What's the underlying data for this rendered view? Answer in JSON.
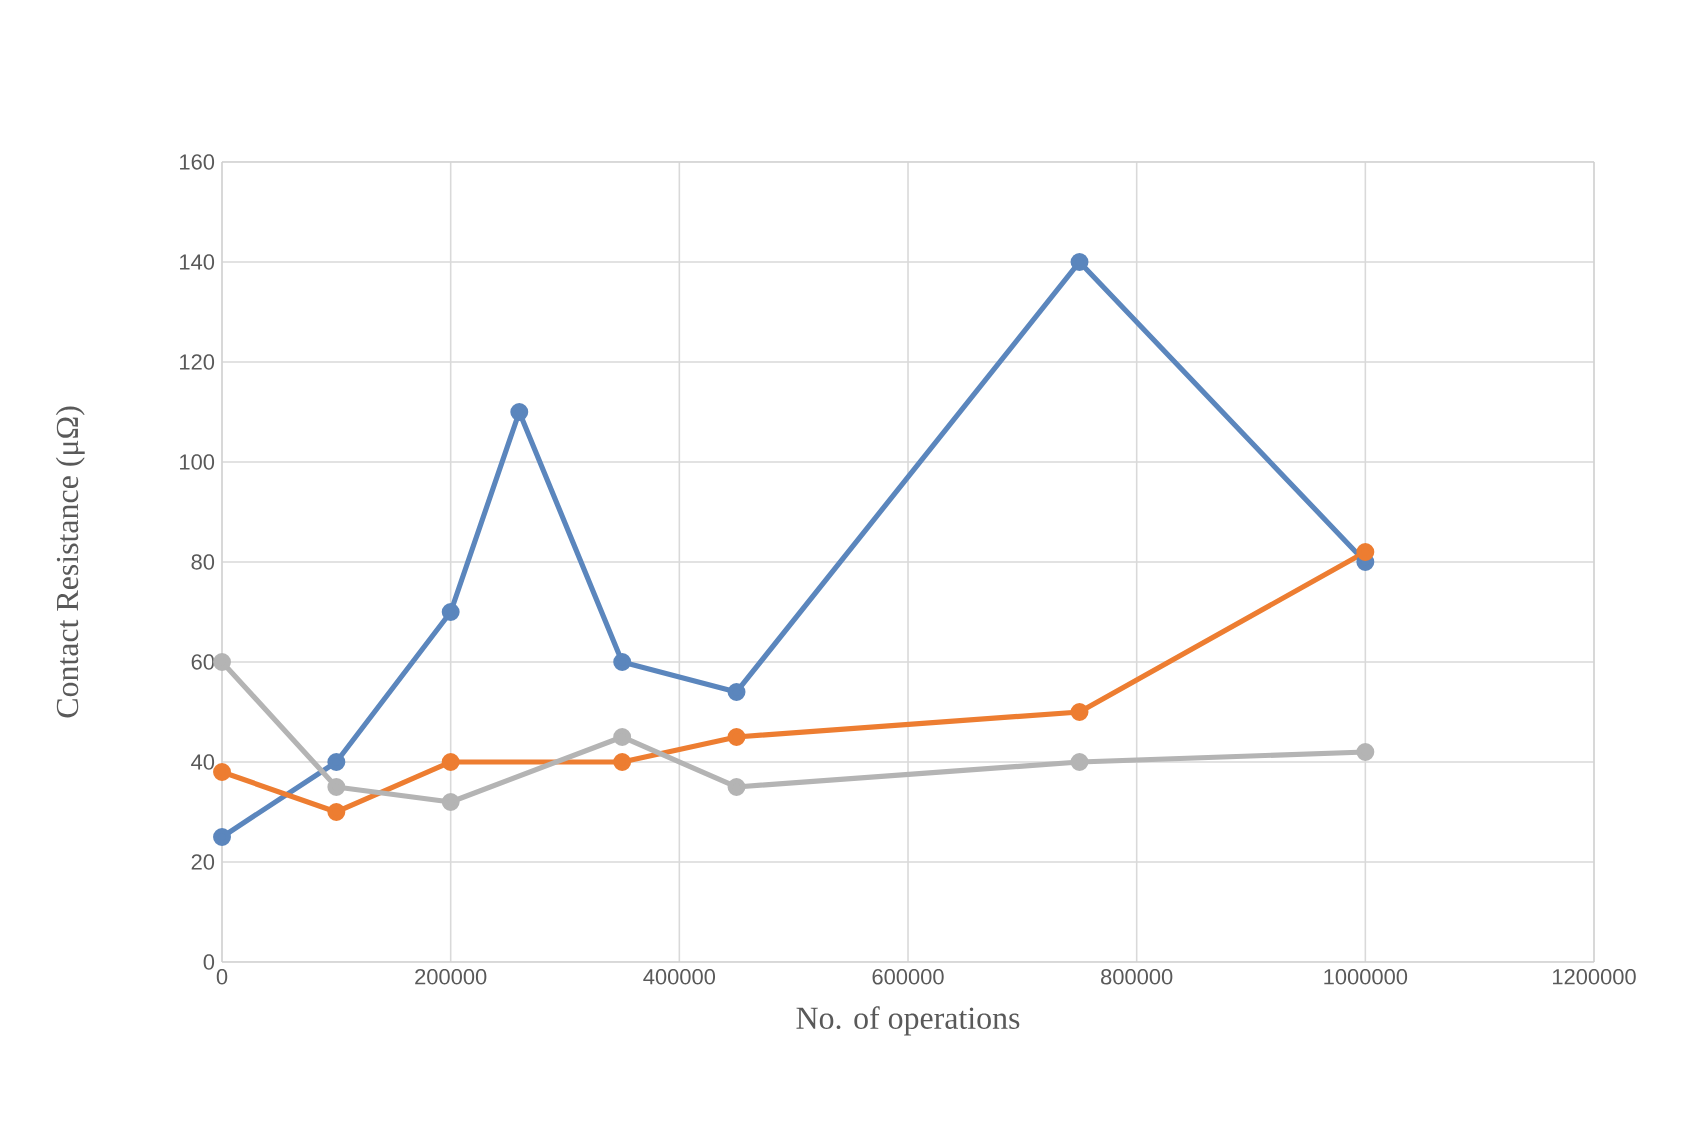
{
  "chart_data": {
    "type": "line",
    "xlabel": "No. of operations",
    "ylabel": "Contact Resistance (μΩ)",
    "xlim": [
      0,
      1200000
    ],
    "xticks": [
      0,
      200000,
      400000,
      600000,
      800000,
      1000000,
      1200000
    ],
    "ylim": [
      0,
      160
    ],
    "yticks": [
      0,
      20,
      40,
      60,
      80,
      100,
      120,
      140,
      160
    ],
    "grid": true,
    "marker": "circle",
    "series": [
      {
        "color": "#5b86bd",
        "x": [
          0,
          100000,
          200000,
          260000,
          350000,
          450000,
          750000,
          1000000
        ],
        "values": [
          25,
          40,
          70,
          110,
          60,
          54,
          140,
          80
        ]
      },
      {
        "color": "#ed7d31",
        "x": [
          0,
          100000,
          200000,
          350000,
          450000,
          750000,
          1000000
        ],
        "values": [
          38,
          30,
          40,
          40,
          45,
          50,
          82
        ]
      },
      {
        "color": "#b4b4b4",
        "x": [
          0,
          100000,
          200000,
          350000,
          450000,
          750000,
          1000000
        ],
        "values": [
          60,
          35,
          32,
          45,
          35,
          40,
          42
        ]
      }
    ]
  }
}
